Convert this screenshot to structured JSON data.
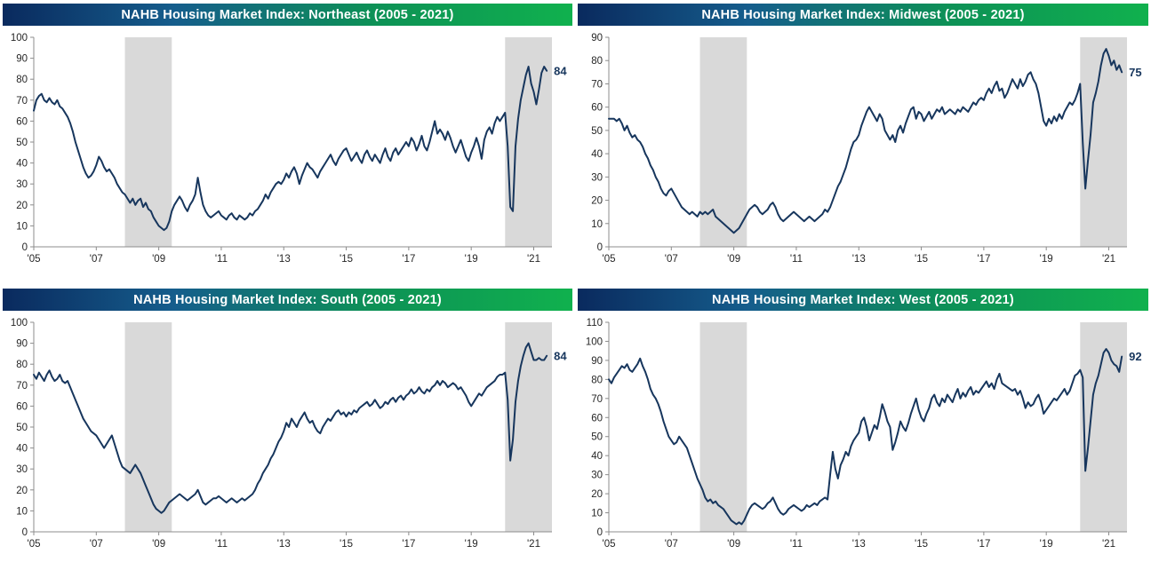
{
  "style": {
    "title_gradient": [
      "#0a2a5e",
      "#155d8c",
      "#0d9156",
      "#10b14e"
    ],
    "title_text_color": "#ffffff",
    "line_color": "#17365d",
    "recession_band_color": "#d9d9d9",
    "axis_color": "#8c8c8c",
    "tick_label_color": "#262626",
    "background_color": "#ffffff"
  },
  "x_axis": {
    "tick_labels": [
      "'05",
      "'07",
      "'09",
      "'11",
      "'13",
      "'15",
      "'17",
      "'19",
      "'21"
    ],
    "tick_months": [
      0,
      24,
      48,
      72,
      96,
      120,
      144,
      168,
      192
    ],
    "start": "2005-01",
    "interval": "monthly"
  },
  "recession_shading_months": [
    [
      35,
      53
    ],
    [
      181,
      199
    ]
  ],
  "chart_data": [
    {
      "type": "line",
      "region": "Northeast",
      "title": "NAHB Housing Market Index: Northeast (2005 - 2021)",
      "ylim": [
        0,
        100
      ],
      "y_tick_step": 10,
      "last_value_label": "84",
      "legend": "none",
      "grid": "off",
      "values": [
        65,
        70,
        72,
        73,
        70,
        69,
        71,
        69,
        68,
        70,
        67,
        66,
        64,
        62,
        59,
        55,
        50,
        46,
        42,
        38,
        35,
        33,
        34,
        36,
        39,
        43,
        41,
        38,
        36,
        37,
        35,
        33,
        30,
        28,
        26,
        25,
        23,
        21,
        23,
        20,
        22,
        23,
        19,
        21,
        18,
        17,
        14,
        12,
        10,
        9,
        8,
        9,
        12,
        17,
        20,
        22,
        24,
        22,
        19,
        17,
        20,
        22,
        25,
        33,
        26,
        20,
        17,
        15,
        14,
        15,
        16,
        17,
        15,
        14,
        13,
        15,
        16,
        14,
        13,
        15,
        14,
        13,
        14,
        16,
        15,
        17,
        18,
        20,
        22,
        25,
        23,
        26,
        28,
        30,
        31,
        30,
        32,
        35,
        33,
        36,
        38,
        35,
        30,
        34,
        37,
        40,
        38,
        37,
        35,
        33,
        36,
        38,
        40,
        42,
        44,
        41,
        39,
        42,
        44,
        46,
        47,
        44,
        41,
        43,
        45,
        42,
        40,
        44,
        46,
        43,
        41,
        44,
        42,
        40,
        44,
        47,
        43,
        41,
        45,
        47,
        44,
        46,
        48,
        50,
        48,
        52,
        50,
        46,
        49,
        53,
        48,
        46,
        50,
        55,
        60,
        54,
        56,
        54,
        51,
        55,
        52,
        48,
        45,
        48,
        51,
        47,
        43,
        41,
        45,
        48,
        52,
        48,
        42,
        51,
        55,
        57,
        54,
        59,
        62,
        60,
        62,
        64,
        48,
        19,
        17,
        48,
        61,
        70,
        76,
        82,
        86,
        78,
        74,
        68,
        75,
        83,
        86,
        84
      ]
    },
    {
      "type": "line",
      "region": "Midwest",
      "title": "NAHB Housing Market Index: Midwest (2005 - 2021)",
      "ylim": [
        0,
        90
      ],
      "y_tick_step": 10,
      "last_value_label": "75",
      "legend": "none",
      "grid": "off",
      "values": [
        55,
        55,
        55,
        54,
        55,
        53,
        50,
        52,
        49,
        47,
        48,
        46,
        45,
        43,
        40,
        38,
        35,
        33,
        30,
        28,
        25,
        23,
        22,
        24,
        25,
        23,
        21,
        19,
        17,
        16,
        15,
        14,
        15,
        14,
        13,
        15,
        14,
        15,
        14,
        15,
        16,
        13,
        12,
        11,
        10,
        9,
        8,
        7,
        6,
        7,
        8,
        10,
        12,
        14,
        16,
        17,
        18,
        17,
        15,
        14,
        15,
        16,
        18,
        19,
        17,
        14,
        12,
        11,
        12,
        13,
        14,
        15,
        14,
        13,
        12,
        11,
        12,
        13,
        12,
        11,
        12,
        13,
        14,
        16,
        15,
        17,
        20,
        23,
        26,
        28,
        31,
        34,
        38,
        42,
        45,
        46,
        48,
        52,
        55,
        58,
        60,
        58,
        56,
        54,
        57,
        55,
        50,
        48,
        46,
        48,
        45,
        50,
        52,
        49,
        53,
        56,
        59,
        60,
        55,
        58,
        57,
        54,
        56,
        58,
        55,
        57,
        59,
        58,
        60,
        57,
        58,
        59,
        58,
        57,
        59,
        58,
        60,
        59,
        58,
        60,
        62,
        61,
        63,
        64,
        63,
        66,
        68,
        66,
        69,
        71,
        67,
        68,
        64,
        66,
        69,
        72,
        70,
        68,
        72,
        69,
        71,
        74,
        75,
        72,
        70,
        66,
        60,
        54,
        52,
        55,
        53,
        56,
        54,
        57,
        55,
        58,
        60,
        62,
        61,
        63,
        66,
        70,
        45,
        25,
        37,
        48,
        62,
        66,
        71,
        78,
        83,
        85,
        82,
        78,
        80,
        76,
        78,
        75
      ]
    },
    {
      "type": "line",
      "region": "South",
      "title": "NAHB Housing Market Index: South (2005 - 2021)",
      "ylim": [
        0,
        100
      ],
      "y_tick_step": 10,
      "last_value_label": "84",
      "legend": "none",
      "grid": "off",
      "values": [
        75,
        73,
        76,
        74,
        72,
        75,
        77,
        74,
        72,
        73,
        75,
        72,
        71,
        72,
        69,
        66,
        63,
        60,
        57,
        54,
        52,
        50,
        48,
        47,
        46,
        44,
        42,
        40,
        42,
        44,
        46,
        42,
        38,
        34,
        31,
        30,
        29,
        28,
        30,
        32,
        30,
        28,
        25,
        22,
        19,
        16,
        13,
        11,
        10,
        9,
        10,
        12,
        14,
        15,
        16,
        17,
        18,
        17,
        16,
        15,
        16,
        17,
        18,
        20,
        17,
        14,
        13,
        14,
        15,
        16,
        16,
        17,
        16,
        15,
        14,
        15,
        16,
        15,
        14,
        15,
        16,
        15,
        16,
        17,
        18,
        20,
        23,
        25,
        28,
        30,
        32,
        35,
        37,
        40,
        43,
        45,
        48,
        52,
        50,
        54,
        52,
        50,
        53,
        55,
        57,
        54,
        52,
        53,
        50,
        48,
        47,
        50,
        52,
        54,
        53,
        55,
        57,
        58,
        56,
        57,
        55,
        57,
        56,
        58,
        57,
        59,
        60,
        61,
        62,
        60,
        61,
        63,
        61,
        59,
        60,
        62,
        61,
        63,
        64,
        62,
        64,
        65,
        63,
        65,
        66,
        68,
        66,
        67,
        69,
        67,
        66,
        68,
        67,
        69,
        70,
        72,
        70,
        72,
        71,
        69,
        70,
        71,
        70,
        68,
        69,
        67,
        65,
        62,
        60,
        62,
        64,
        66,
        65,
        67,
        69,
        70,
        71,
        72,
        74,
        75,
        75,
        76,
        63,
        34,
        44,
        62,
        72,
        79,
        84,
        88,
        90,
        86,
        82,
        82,
        83,
        82,
        82,
        84
      ]
    },
    {
      "type": "line",
      "region": "West",
      "title": "NAHB Housing Market Index: West (2005 - 2021)",
      "ylim": [
        0,
        110
      ],
      "y_tick_step": 10,
      "last_value_label": "92",
      "legend": "none",
      "grid": "off",
      "values": [
        80,
        78,
        81,
        83,
        85,
        87,
        86,
        88,
        85,
        84,
        86,
        88,
        91,
        87,
        84,
        80,
        75,
        72,
        70,
        67,
        63,
        58,
        54,
        50,
        48,
        46,
        47,
        50,
        48,
        46,
        44,
        40,
        36,
        32,
        28,
        25,
        22,
        18,
        16,
        17,
        15,
        16,
        14,
        13,
        12,
        10,
        8,
        6,
        5,
        4,
        5,
        4,
        6,
        9,
        12,
        14,
        15,
        14,
        13,
        12,
        13,
        15,
        16,
        18,
        15,
        12,
        10,
        9,
        10,
        12,
        13,
        14,
        13,
        12,
        11,
        12,
        14,
        13,
        14,
        15,
        14,
        16,
        17,
        18,
        17,
        30,
        42,
        33,
        28,
        35,
        38,
        42,
        40,
        45,
        48,
        50,
        52,
        58,
        60,
        55,
        48,
        52,
        56,
        54,
        60,
        67,
        63,
        58,
        55,
        43,
        47,
        52,
        58,
        55,
        53,
        57,
        62,
        66,
        70,
        64,
        60,
        58,
        62,
        65,
        70,
        72,
        68,
        66,
        70,
        68,
        72,
        70,
        68,
        72,
        75,
        70,
        73,
        71,
        74,
        76,
        72,
        74,
        73,
        75,
        77,
        79,
        76,
        78,
        75,
        80,
        83,
        78,
        77,
        76,
        75,
        74,
        75,
        72,
        74,
        70,
        65,
        68,
        66,
        67,
        70,
        72,
        68,
        62,
        64,
        66,
        68,
        70,
        69,
        71,
        73,
        75,
        72,
        74,
        78,
        82,
        83,
        85,
        81,
        32,
        44,
        58,
        72,
        78,
        82,
        88,
        94,
        96,
        94,
        90,
        88,
        87,
        84,
        92
      ]
    }
  ]
}
